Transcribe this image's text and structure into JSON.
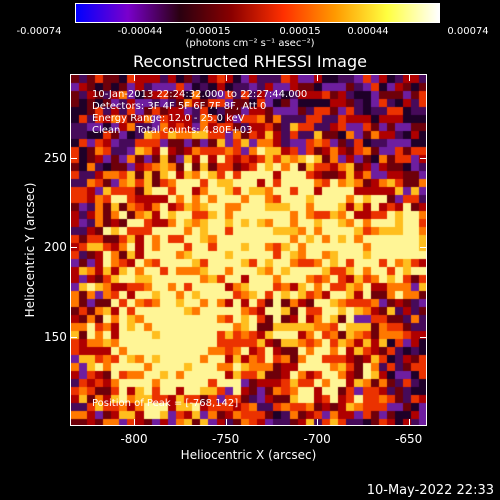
{
  "colorbar": {
    "ticks": [
      "-0.00074",
      "-0.00044",
      "-0.00015",
      "0.00015",
      "0.00044",
      "0.00074"
    ],
    "units_label": "(photons cm⁻² s⁻¹ asec⁻²)",
    "colors": [
      "#0000ff",
      "#7a00cc",
      "#2a0010",
      "#8a0000",
      "#ff3000",
      "#ff9a00",
      "#ffff40",
      "#ffffff"
    ]
  },
  "title": "Reconstructed RHESSI Image",
  "info": {
    "time_range": "10-Jan-2013 22:24:32.000 to 22:27:44.000",
    "detectors": "Detectors: 3F 4F 5F 6F 7F 8F, Att 0",
    "energy_range": "Energy Range: 12.0 - 25.0 keV",
    "algorithm": "Clean     Total counts: 4.80E+03",
    "peak": "Position of Peak = [-768,142]"
  },
  "axes": {
    "xlabel": "Heliocentric X (arcsec)",
    "ylabel": "Heliocentric Y (arcsec)",
    "xticks": [
      "-800",
      "-750",
      "-700",
      "-650"
    ],
    "yticks": [
      "250",
      "200",
      "150"
    ],
    "xlim": [
      -835,
      -640
    ],
    "ylim": [
      100,
      297
    ]
  },
  "footer": {
    "timestamp": "10-May-2022 22:33"
  }
}
